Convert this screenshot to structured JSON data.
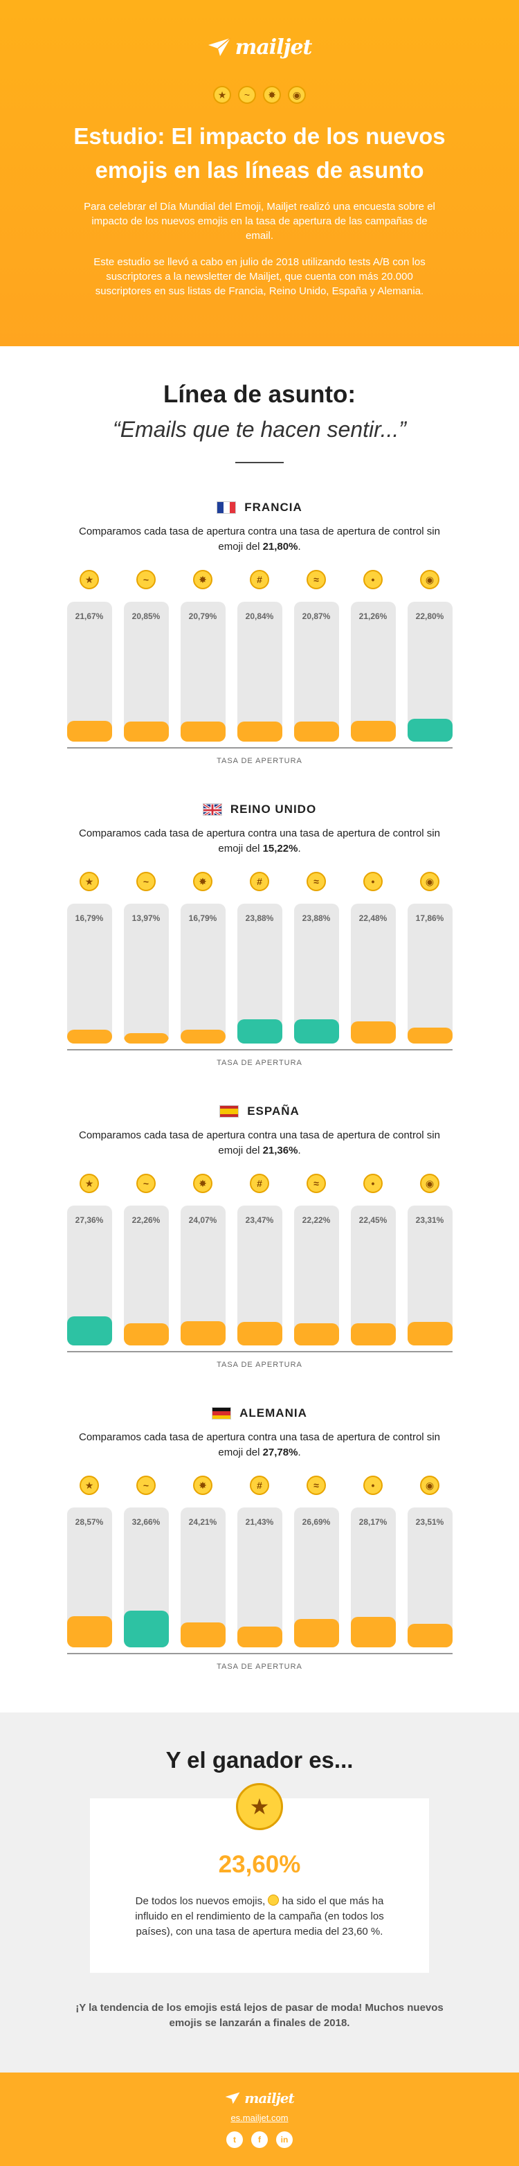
{
  "brand": {
    "name": "mailjet"
  },
  "hero": {
    "emojis": [
      "star-struck",
      "face-with-raised-eyebrow",
      "exploding-head",
      "face-with-monocle"
    ],
    "title": "Estudio: El impacto de los nuevos emojis en las líneas de asunto",
    "p1": "Para celebrar el Día Mundial del Emoji, Mailjet realizó una encuesta sobre el impacto de los nuevos emojis en la tasa de apertura de las campañas de email.",
    "p2": "Este estudio se llevó a cabo en julio de 2018 utilizando tests A/B con los suscriptores a la newsletter de Mailjet, que cuenta con más 20.000 suscriptores en sus listas de Francia, Reino Unido, España y Alemania."
  },
  "subject": {
    "title": "Línea de asunto:",
    "quote": "“Emails que te hacen sentir...”"
  },
  "emoji_names": [
    "star-struck",
    "face-with-raised-eyebrow",
    "exploding-head",
    "face-with-symbols-on-mouth",
    "face-vomiting",
    "shushing-face",
    "face-with-monocle"
  ],
  "countries": [
    {
      "name": "FRANCIA",
      "flag": "france-flag",
      "control": "21,80%",
      "desc_pre": "Comparamos cada tasa de apertura contra una tasa de apertura de control sin emoji del ",
      "desc_post": ".",
      "rates": [
        "21,67%",
        "20,85%",
        "20,79%",
        "20,84%",
        "20,87%",
        "21,26%",
        "22,80%"
      ],
      "values": [
        21.67,
        20.85,
        20.79,
        20.84,
        20.87,
        21.26,
        22.8
      ],
      "winners": [
        6
      ]
    },
    {
      "name": "REINO UNIDO",
      "flag": "uk-flag",
      "control": "15,22%",
      "desc_pre": "Comparamos cada tasa de apertura contra una tasa de apertura de control sin emoji del ",
      "desc_post": ".",
      "rates": [
        "16,79%",
        "13,97%",
        "16,79%",
        "23,88%",
        "23,88%",
        "22,48%",
        "17,86%"
      ],
      "values": [
        16.79,
        13.97,
        16.79,
        23.88,
        23.88,
        22.48,
        17.86
      ],
      "winners": [
        3,
        4
      ]
    },
    {
      "name": "ESPAÑA",
      "flag": "spain-flag",
      "control": "21,36%",
      "desc_pre": "Comparamos cada tasa de apertura contra una tasa de apertura de control sin emoji del ",
      "desc_post": ".",
      "rates": [
        "27,36%",
        "22,26%",
        "24,07%",
        "23,47%",
        "22,22%",
        "22,45%",
        "23,31%"
      ],
      "values": [
        27.36,
        22.26,
        24.07,
        23.47,
        22.22,
        22.45,
        23.31
      ],
      "winners": [
        0
      ]
    },
    {
      "name": "ALEMANIA",
      "flag": "germany-flag",
      "control": "27,78%",
      "desc_pre": "Comparamos cada tasa de apertura contra una tasa de apertura de control sin emoji del ",
      "desc_post": ".",
      "rates": [
        "28,57%",
        "32,66%",
        "24,21%",
        "21,43%",
        "26,69%",
        "28,17%",
        "23,51%"
      ],
      "values": [
        28.57,
        32.66,
        24.21,
        21.43,
        26.69,
        28.17,
        23.51
      ],
      "winners": [
        1
      ]
    }
  ],
  "axis_label": "TASA DE APERTURA",
  "winner": {
    "title": "Y el ganador es...",
    "pct": "23,60%",
    "text_pre": "De todos los nuevos emojis, ",
    "text_post": " ha sido el que más ha influido en el rendimiento de la campaña (en todos los países), con una tasa de apertura media del 23,60 %.",
    "trend": "¡Y la tendencia de los emojis está lejos de pasar de moda! Muchos nuevos emojis se lanzarán a finales de 2018."
  },
  "footer": {
    "site": "es.mailjet.com",
    "social": [
      "twitter-icon",
      "facebook-icon",
      "linkedin-icon"
    ]
  },
  "colors": {
    "orange": "#ffad24",
    "teal": "#2dc2a3",
    "bar_bg": "#e8e8e8"
  }
}
